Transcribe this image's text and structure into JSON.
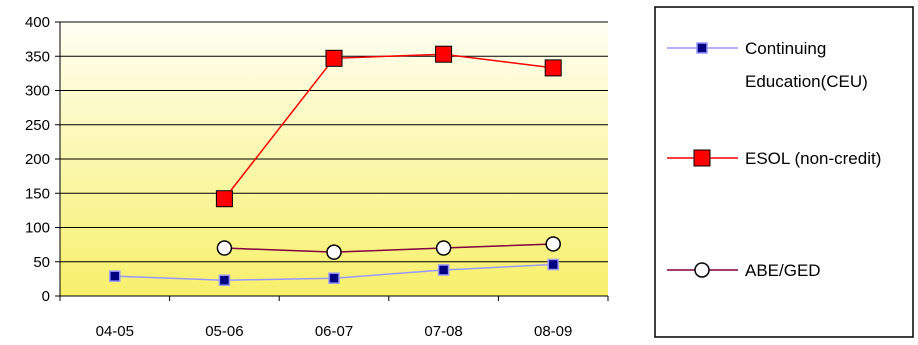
{
  "chart_data": {
    "type": "line",
    "categories": [
      "04-05",
      "05-06",
      "06-07",
      "07-08",
      "08-09"
    ],
    "ylim": [
      0,
      400
    ],
    "y_ticks": [
      "0",
      "50",
      "100",
      "150",
      "200",
      "250",
      "300",
      "350",
      "400"
    ],
    "grid": true,
    "legend_position": "right",
    "background": "vertical gradient from pale yellow (top) to yellow (bottom)",
    "series": [
      {
        "name_lines": [
          "Continuing",
          "Education(CEU)"
        ],
        "values": [
          29,
          23,
          26,
          38,
          46
        ],
        "line_color": "#9999ff",
        "marker": "square-small",
        "marker_fill": "#000080"
      },
      {
        "name_lines": [
          "ESOL (non-credit)"
        ],
        "values": [
          null,
          142,
          347,
          353,
          333
        ],
        "line_color": "#ff0000",
        "marker": "square-large",
        "marker_fill": "#ff0000"
      },
      {
        "name_lines": [
          "ABE/GED"
        ],
        "values": [
          null,
          70,
          64,
          70,
          76
        ],
        "line_color": "#800040",
        "marker": "circle-open",
        "marker_fill": "#ffffff"
      }
    ]
  }
}
